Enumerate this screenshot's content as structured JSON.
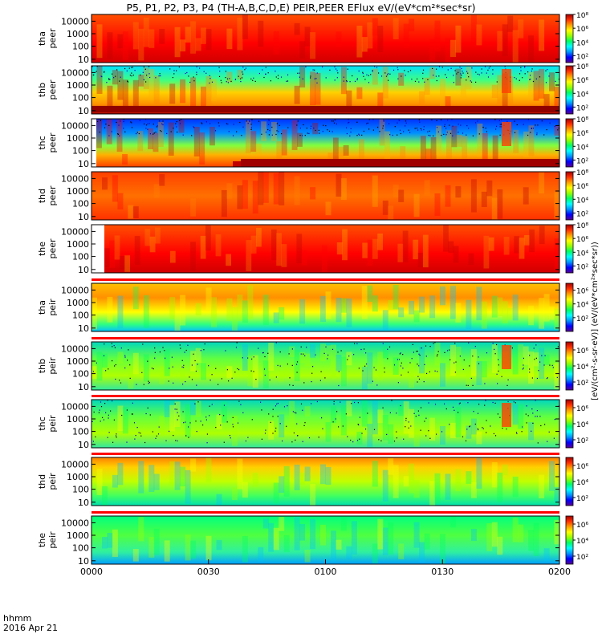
{
  "chart_data": {
    "type": "heatmap",
    "title": "P5, P1, P2, P3, P4 (TH-A,B,C,D,E) PEIR,PEER EFlux eV/(eV*cm²*sec*sr)",
    "xlabel": "hhmm",
    "date_label": "2016 Apr 21",
    "x_ticks": [
      "0000",
      "0030",
      "0100",
      "0130",
      "0200"
    ],
    "y_scale": "log",
    "y_ticks": [
      "10",
      "100",
      "1000",
      "10000"
    ],
    "colorbar_label": "[eV/(cm²-s-sr-eV)] (eV/(eV*cm²*sec*sr))",
    "colorscale": [
      "#5a0090",
      "#0000ff",
      "#0096ff",
      "#00ffff",
      "#00ff64",
      "#96ff00",
      "#ffff00",
      "#ffa000",
      "#ff3000",
      "#a00000"
    ],
    "panels": [
      {
        "probe": "tha",
        "species": "peer",
        "cbar_ticks": [
          "10²",
          "10⁴",
          "10⁶",
          "10⁸"
        ],
        "cbar_range": [
          1,
          8
        ]
      },
      {
        "probe": "thb",
        "species": "peer",
        "cbar_ticks": [
          "10²",
          "10⁴",
          "10⁶",
          "10⁸"
        ],
        "cbar_range": [
          1,
          8
        ]
      },
      {
        "probe": "thc",
        "species": "peer",
        "cbar_ticks": [
          "10²",
          "10⁴",
          "10⁶",
          "10⁸"
        ],
        "cbar_range": [
          1,
          8
        ]
      },
      {
        "probe": "thd",
        "species": "peer",
        "cbar_ticks": [
          "10²",
          "10⁴",
          "10⁶",
          "10⁸"
        ],
        "cbar_range": [
          1,
          8
        ]
      },
      {
        "probe": "the",
        "species": "peer",
        "cbar_ticks": [
          "10²",
          "10⁴",
          "10⁶",
          "10⁸"
        ],
        "cbar_range": [
          1,
          8
        ]
      },
      {
        "probe": "tha",
        "species": "peir",
        "cbar_ticks": [
          "10²",
          "10⁴",
          "10⁶"
        ],
        "cbar_range": [
          0,
          7
        ]
      },
      {
        "probe": "thb",
        "species": "peir",
        "cbar_ticks": [
          "10²",
          "10⁴",
          "10⁶"
        ],
        "cbar_range": [
          1,
          7
        ]
      },
      {
        "probe": "thc",
        "species": "peir",
        "cbar_ticks": [
          "10²",
          "10⁴",
          "10⁶"
        ],
        "cbar_range": [
          1,
          7
        ]
      },
      {
        "probe": "thd",
        "species": "peir",
        "cbar_ticks": [
          "10²",
          "10⁴",
          "10⁶"
        ],
        "cbar_range": [
          1,
          7
        ]
      },
      {
        "probe": "the",
        "species": "peir",
        "cbar_ticks": [
          "10²",
          "10⁴",
          "10⁶"
        ],
        "cbar_range": [
          1,
          7
        ]
      }
    ]
  }
}
